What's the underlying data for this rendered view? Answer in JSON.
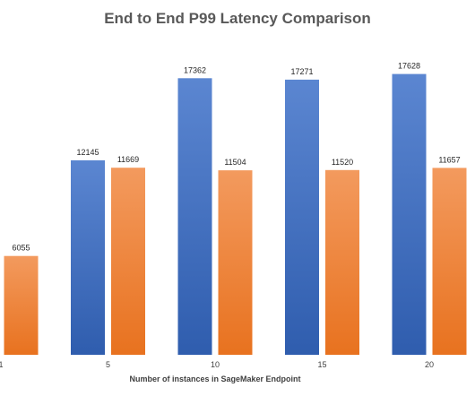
{
  "chart_data": {
    "type": "bar",
    "title": "End to End P99 Latency Comparison",
    "xlabel": "Number of instances in SageMaker Endpoint",
    "ylabel": "",
    "categories": [
      "1",
      "5",
      "10",
      "15",
      "20"
    ],
    "series": [
      {
        "values": [
          null,
          12145,
          17362,
          17271,
          17628
        ],
        "color": "#4472C4"
      },
      {
        "values": [
          6055,
          11669,
          11504,
          11520,
          11657
        ],
        "color": "#ED7D31"
      }
    ],
    "ylim": [
      0,
      20000
    ],
    "grid": false,
    "legend": "none"
  }
}
